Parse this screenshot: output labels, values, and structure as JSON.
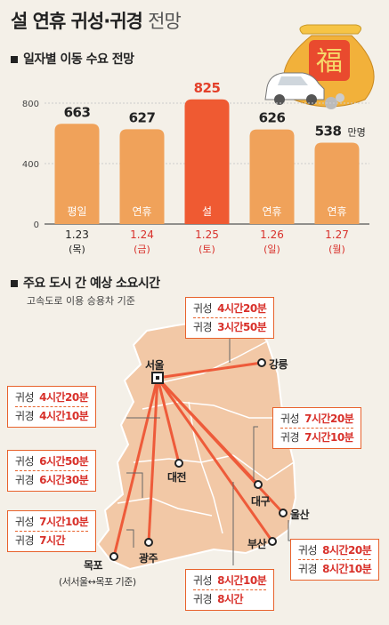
{
  "title": {
    "main": "설 연휴 귀성·귀경",
    "sub": "전망"
  },
  "bag_char": "福",
  "section1": "일자별 이동 수요 전망",
  "section2": "주요 도시 간 예상 소요시간",
  "section2_sub": "고속도로 이용 승용차 기준",
  "unit_suffix": "만명",
  "chart_data": {
    "type": "bar",
    "categories": [
      "평일",
      "연휴",
      "설",
      "연휴",
      "연휴"
    ],
    "values": [
      663,
      627,
      825,
      626,
      538
    ],
    "value_labels": [
      "663",
      "627",
      "825",
      "626",
      "538"
    ],
    "dates": [
      "1.23",
      "1.24",
      "1.25",
      "1.26",
      "1.27"
    ],
    "weekdays": [
      "(목)",
      "(금)",
      "(토)",
      "(일)",
      "(월)"
    ],
    "date_colors": [
      "#222222",
      "#d8302a",
      "#d8302a",
      "#d8302a",
      "#d8302a"
    ],
    "bar_colors": [
      "#f0a25a",
      "#f0a25a",
      "#ef5a32",
      "#f0a25a",
      "#f0a25a"
    ],
    "value_colors": [
      "#222222",
      "#222222",
      "#e3402a",
      "#222222",
      "#222222"
    ],
    "yticks": [
      0,
      400,
      800
    ],
    "ylim": [
      0,
      880
    ],
    "grid": true
  },
  "route_labels": {
    "out": "귀성",
    "back": "귀경"
  },
  "routes": [
    {
      "city": "강릉",
      "out": "4시간20분",
      "back": "3시간50분"
    },
    {
      "city": "대전",
      "out": "4시간20분",
      "back": "4시간10분"
    },
    {
      "city": "대구",
      "out": "7시간20분",
      "back": "7시간10분"
    },
    {
      "city": "광주",
      "out": "6시간50분",
      "back": "6시간30분"
    },
    {
      "city": "목포",
      "out": "7시간10분",
      "back": "7시간"
    },
    {
      "city": "울산",
      "out": "8시간20분",
      "back": "8시간10분"
    },
    {
      "city": "부산",
      "out": "8시간10분",
      "back": "8시간"
    }
  ],
  "cities": {
    "seoul": "서울",
    "gangneung": "강릉",
    "daejeon": "대전",
    "daegu": "대구",
    "ulsan": "울산",
    "busan": "부산",
    "gwangju": "광주",
    "mokpo": "목포"
  },
  "mokpo_note": "(서서울↔목포 기준)",
  "colors": {
    "accent": "#ef5a32",
    "bar": "#f0a25a",
    "map": "#f2c8a6",
    "line": "#ee5b3a"
  }
}
